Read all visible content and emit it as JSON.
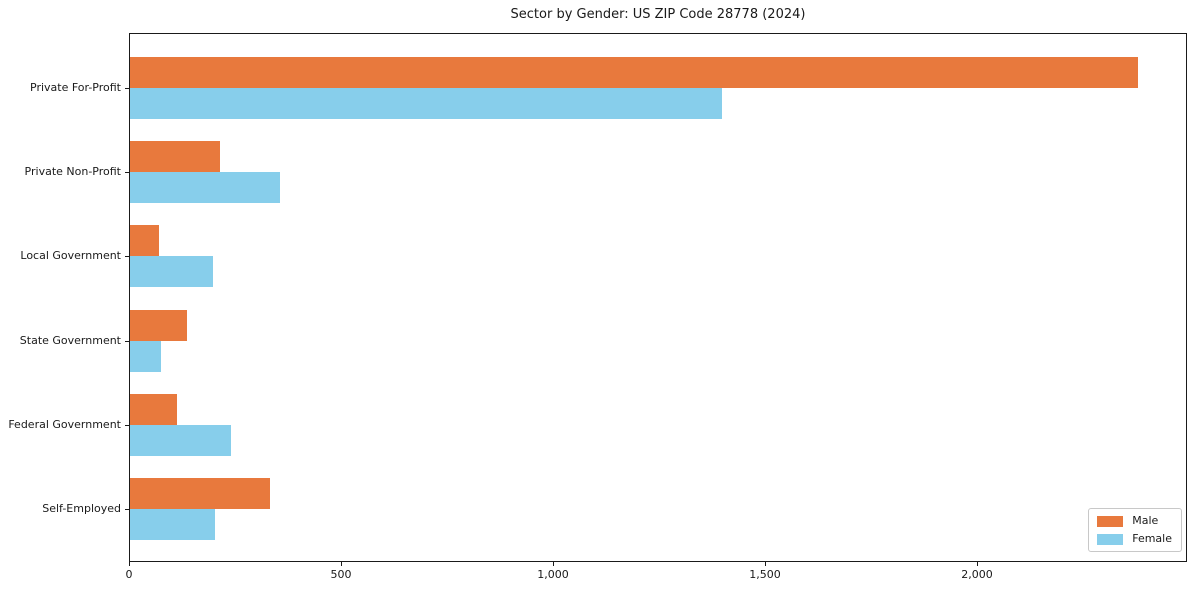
{
  "title": "Sector by Gender: US ZIP Code 28778 (2024)",
  "chart_data": {
    "type": "bar",
    "orientation": "horizontal",
    "title": "Sector by Gender: US ZIP Code 28778 (2024)",
    "categories": [
      "Private For-Profit",
      "Private Non-Profit",
      "Local Government",
      "State Government",
      "Federal Government",
      "Self-Employed"
    ],
    "series": [
      {
        "name": "Male",
        "color": "#e8793d",
        "values": [
          2377,
          212,
          68,
          134,
          111,
          330
        ]
      },
      {
        "name": "Female",
        "color": "#87ceeb",
        "values": [
          1395,
          354,
          196,
          73,
          238,
          200
        ]
      }
    ],
    "xlabel": "",
    "ylabel": "",
    "xlim": [
      0,
      2495
    ],
    "xticks": [
      0,
      500,
      1000,
      1500,
      2000
    ],
    "xtick_labels": [
      "0",
      "500",
      "1,000",
      "1,500",
      "2,000"
    ],
    "grid": false,
    "legend_position": "lower right",
    "frame": true
  }
}
